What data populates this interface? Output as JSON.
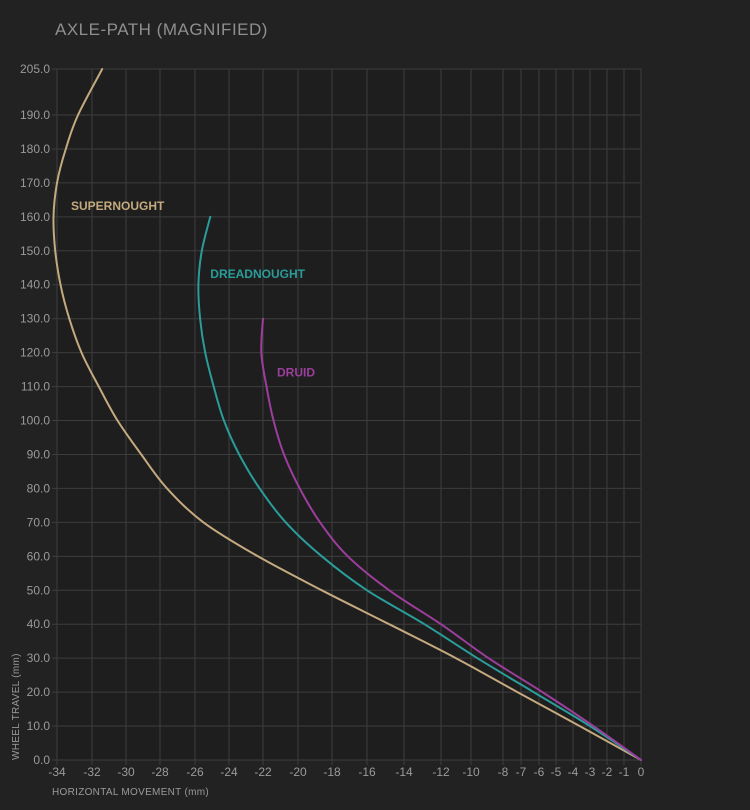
{
  "chart_data": {
    "type": "line",
    "title": "AXLE-PATH (MAGNIFIED)",
    "xlabel": "HORIZONTAL MOVEMENT (mm)",
    "ylabel": "WHEEL TRAVEL (mm)",
    "xlim": [
      -34,
      0
    ],
    "ylim": [
      0,
      205
    ],
    "grid": true,
    "x_ticks": [
      -34,
      -32,
      -30,
      -28,
      -26,
      -24,
      -22,
      -20,
      -18,
      -16,
      -14,
      -12,
      -10,
      -8,
      -7,
      -6,
      -5,
      -4,
      -3,
      -2,
      -1,
      0
    ],
    "x_tick_labels": [
      "-34",
      "-32",
      "-30",
      "-28",
      "-26",
      "-24",
      "-22",
      "-20",
      "-18",
      "-16",
      "-14",
      "-12",
      "-10",
      "-8",
      "-7",
      "-6",
      "-5",
      "-4",
      "-3",
      "-2",
      "-1",
      "0"
    ],
    "y_ticks": [
      0,
      10,
      20,
      30,
      40,
      50,
      60,
      70,
      80,
      90,
      100,
      110,
      120,
      130,
      140,
      150,
      160,
      170,
      180,
      190,
      205
    ],
    "y_tick_labels": [
      "0.0",
      "10.0",
      "20.0",
      "30.0",
      "40.0",
      "50.0",
      "60.0",
      "70.0",
      "80.0",
      "90.0",
      "100.0",
      "110.0",
      "120.0",
      "130.0",
      "140.0",
      "150.0",
      "160.0",
      "170.0",
      "180.0",
      "190.0",
      "205.0"
    ],
    "series": [
      {
        "name": "SUPERNOUGHT",
        "color": "#c4aa7e",
        "points": [
          [
            0,
            0
          ],
          [
            -3.6,
            10
          ],
          [
            -7.2,
            20
          ],
          [
            -11,
            30
          ],
          [
            -14.8,
            40
          ],
          [
            -18.6,
            50
          ],
          [
            -22.3,
            60
          ],
          [
            -25.5,
            70
          ],
          [
            -27.6,
            80
          ],
          [
            -29.1,
            90
          ],
          [
            -30.5,
            100
          ],
          [
            -31.6,
            110
          ],
          [
            -32.6,
            120
          ],
          [
            -33.3,
            130
          ],
          [
            -33.8,
            140
          ],
          [
            -34.1,
            150
          ],
          [
            -34.2,
            160
          ],
          [
            -34.0,
            170
          ],
          [
            -33.5,
            180
          ],
          [
            -32.8,
            190
          ],
          [
            -31.4,
            205
          ]
        ]
      },
      {
        "name": "DREADNOUGHT",
        "color": "#2a9c9a",
        "points": [
          [
            0,
            0
          ],
          [
            -3,
            10
          ],
          [
            -6.3,
            20
          ],
          [
            -9.6,
            30
          ],
          [
            -12.9,
            40
          ],
          [
            -16,
            50
          ],
          [
            -18.6,
            60
          ],
          [
            -20.7,
            70
          ],
          [
            -22.2,
            80
          ],
          [
            -23.4,
            90
          ],
          [
            -24.3,
            100
          ],
          [
            -24.9,
            110
          ],
          [
            -25.4,
            120
          ],
          [
            -25.7,
            130
          ],
          [
            -25.8,
            140
          ],
          [
            -25.6,
            150
          ],
          [
            -25.1,
            160
          ]
        ]
      },
      {
        "name": "DRUID",
        "color": "#9b3e9c",
        "points": [
          [
            0,
            0
          ],
          [
            -2.8,
            10
          ],
          [
            -5.8,
            20
          ],
          [
            -8.9,
            30
          ],
          [
            -12,
            40
          ],
          [
            -14.8,
            50
          ],
          [
            -17.1,
            60
          ],
          [
            -18.7,
            70
          ],
          [
            -19.9,
            80
          ],
          [
            -20.8,
            90
          ],
          [
            -21.4,
            100
          ],
          [
            -21.8,
            110
          ],
          [
            -22.1,
            120
          ],
          [
            -22.0,
            130
          ]
        ]
      }
    ],
    "annotations": [
      {
        "text": "SUPERNOUGHT",
        "x": -33.2,
        "y": 162,
        "color": "#c4aa7e"
      },
      {
        "text": "DREADNOUGHT",
        "x": -25.1,
        "y": 142,
        "color": "#2a9c9a"
      },
      {
        "text": "DRUID",
        "x": -21.2,
        "y": 113,
        "color": "#9b3e9c"
      }
    ]
  }
}
